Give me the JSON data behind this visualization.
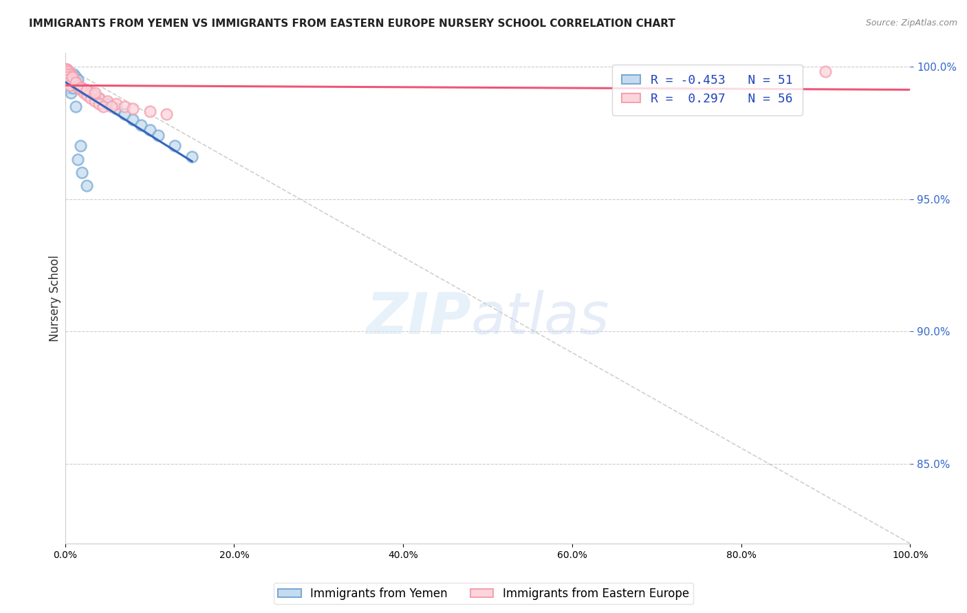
{
  "title": "IMMIGRANTS FROM YEMEN VS IMMIGRANTS FROM EASTERN EUROPE NURSERY SCHOOL CORRELATION CHART",
  "source": "Source: ZipAtlas.com",
  "ylabel": "Nursery School",
  "ylabel_right_vals": [
    1.0,
    0.95,
    0.9,
    0.85
  ],
  "legend_blue_R": "-0.453",
  "legend_blue_N": "51",
  "legend_pink_R": "0.297",
  "legend_pink_N": "56",
  "legend_label_blue": "Immigrants from Yemen",
  "legend_label_pink": "Immigrants from Eastern Europe",
  "blue_color": "#7BAAD4",
  "pink_color": "#F4A0B0",
  "blue_face_color": "#C5DCF0",
  "pink_face_color": "#FCD5DC",
  "blue_line_color": "#3366BB",
  "pink_line_color": "#EE5577",
  "blue_scatter_x": [
    0.001,
    0.002,
    0.003,
    0.001,
    0.004,
    0.005,
    0.002,
    0.003,
    0.001,
    0.006,
    0.008,
    0.004,
    0.003,
    0.002,
    0.005,
    0.007,
    0.009,
    0.01,
    0.012,
    0.015,
    0.002,
    0.004,
    0.006,
    0.003,
    0.001,
    0.002,
    0.008,
    0.01,
    0.014,
    0.02,
    0.025,
    0.03,
    0.035,
    0.04,
    0.05,
    0.06,
    0.07,
    0.08,
    0.09,
    0.1,
    0.11,
    0.13,
    0.15,
    0.005,
    0.007,
    0.015,
    0.02,
    0.025,
    0.018,
    0.012,
    0.009
  ],
  "blue_scatter_y": [
    0.999,
    0.998,
    0.997,
    0.996,
    0.995,
    0.994,
    0.993,
    0.992,
    0.998,
    0.997,
    0.996,
    0.995,
    0.994,
    0.998,
    0.997,
    0.996,
    0.995,
    0.997,
    0.996,
    0.995,
    0.999,
    0.998,
    0.997,
    0.998,
    0.999,
    0.997,
    0.996,
    0.994,
    0.993,
    0.992,
    0.991,
    0.99,
    0.989,
    0.988,
    0.986,
    0.984,
    0.982,
    0.98,
    0.978,
    0.976,
    0.974,
    0.97,
    0.966,
    0.997,
    0.99,
    0.965,
    0.96,
    0.955,
    0.97,
    0.985,
    0.992
  ],
  "pink_scatter_x": [
    0.001,
    0.002,
    0.003,
    0.004,
    0.001,
    0.003,
    0.005,
    0.002,
    0.004,
    0.006,
    0.008,
    0.01,
    0.012,
    0.015,
    0.02,
    0.025,
    0.03,
    0.035,
    0.04,
    0.05,
    0.06,
    0.07,
    0.08,
    0.1,
    0.12,
    0.002,
    0.004,
    0.006,
    0.008,
    0.01,
    0.003,
    0.005,
    0.007,
    0.009,
    0.011,
    0.013,
    0.016,
    0.019,
    0.022,
    0.026,
    0.03,
    0.035,
    0.04,
    0.045,
    0.9,
    0.001,
    0.002,
    0.003,
    0.004,
    0.005,
    0.008,
    0.012,
    0.018,
    0.025,
    0.035,
    0.055
  ],
  "pink_scatter_y": [
    0.999,
    0.998,
    0.997,
    0.996,
    0.995,
    0.998,
    0.997,
    0.999,
    0.998,
    0.997,
    0.996,
    0.995,
    0.994,
    0.993,
    0.992,
    0.991,
    0.99,
    0.989,
    0.988,
    0.987,
    0.986,
    0.985,
    0.984,
    0.983,
    0.982,
    0.999,
    0.998,
    0.997,
    0.996,
    0.995,
    0.998,
    0.997,
    0.996,
    0.995,
    0.994,
    0.993,
    0.992,
    0.991,
    0.99,
    0.989,
    0.988,
    0.987,
    0.986,
    0.985,
    0.998,
    0.997,
    0.996,
    0.995,
    0.994,
    0.993,
    0.996,
    0.994,
    0.992,
    0.991,
    0.99,
    0.985
  ],
  "xlim": [
    0.0,
    1.0
  ],
  "ylim": [
    0.82,
    1.005
  ]
}
